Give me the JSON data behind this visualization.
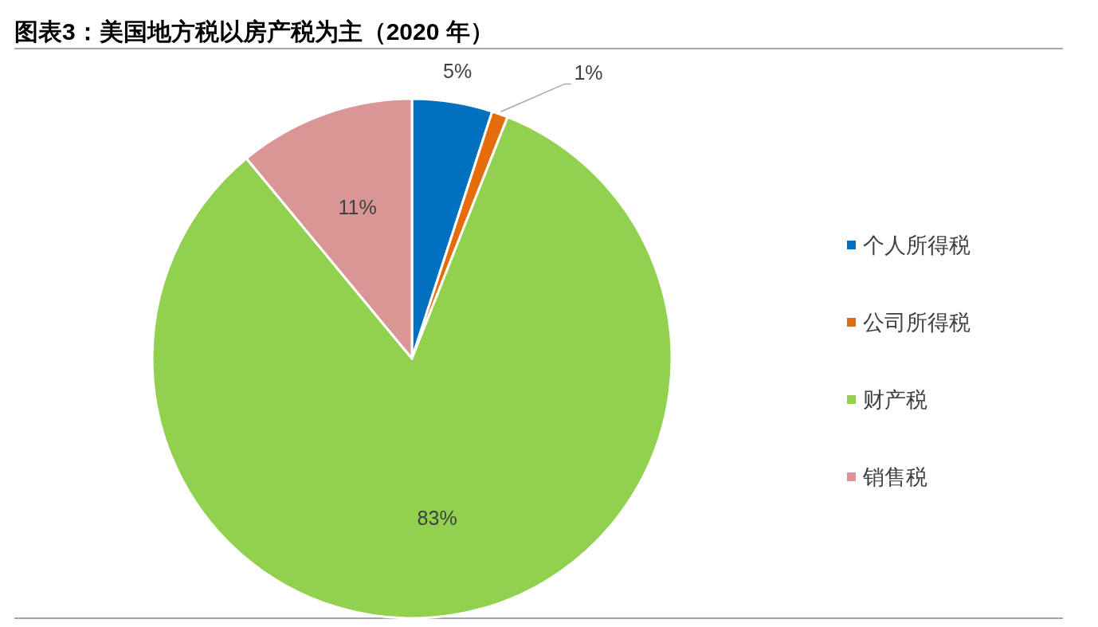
{
  "chart_data": {
    "type": "pie",
    "title": "图表3：美国地方税以房产税为主（2020 年）",
    "categories": [
      "个人所得税",
      "公司所得税",
      "财产税",
      "销售税"
    ],
    "values": [
      5,
      1,
      83,
      11
    ],
    "colors": [
      "#0070c0",
      "#e46c0a",
      "#92d050",
      "#d99694"
    ],
    "value_labels": [
      "5%",
      "1%",
      "83%",
      "11%"
    ],
    "legend": "right"
  }
}
